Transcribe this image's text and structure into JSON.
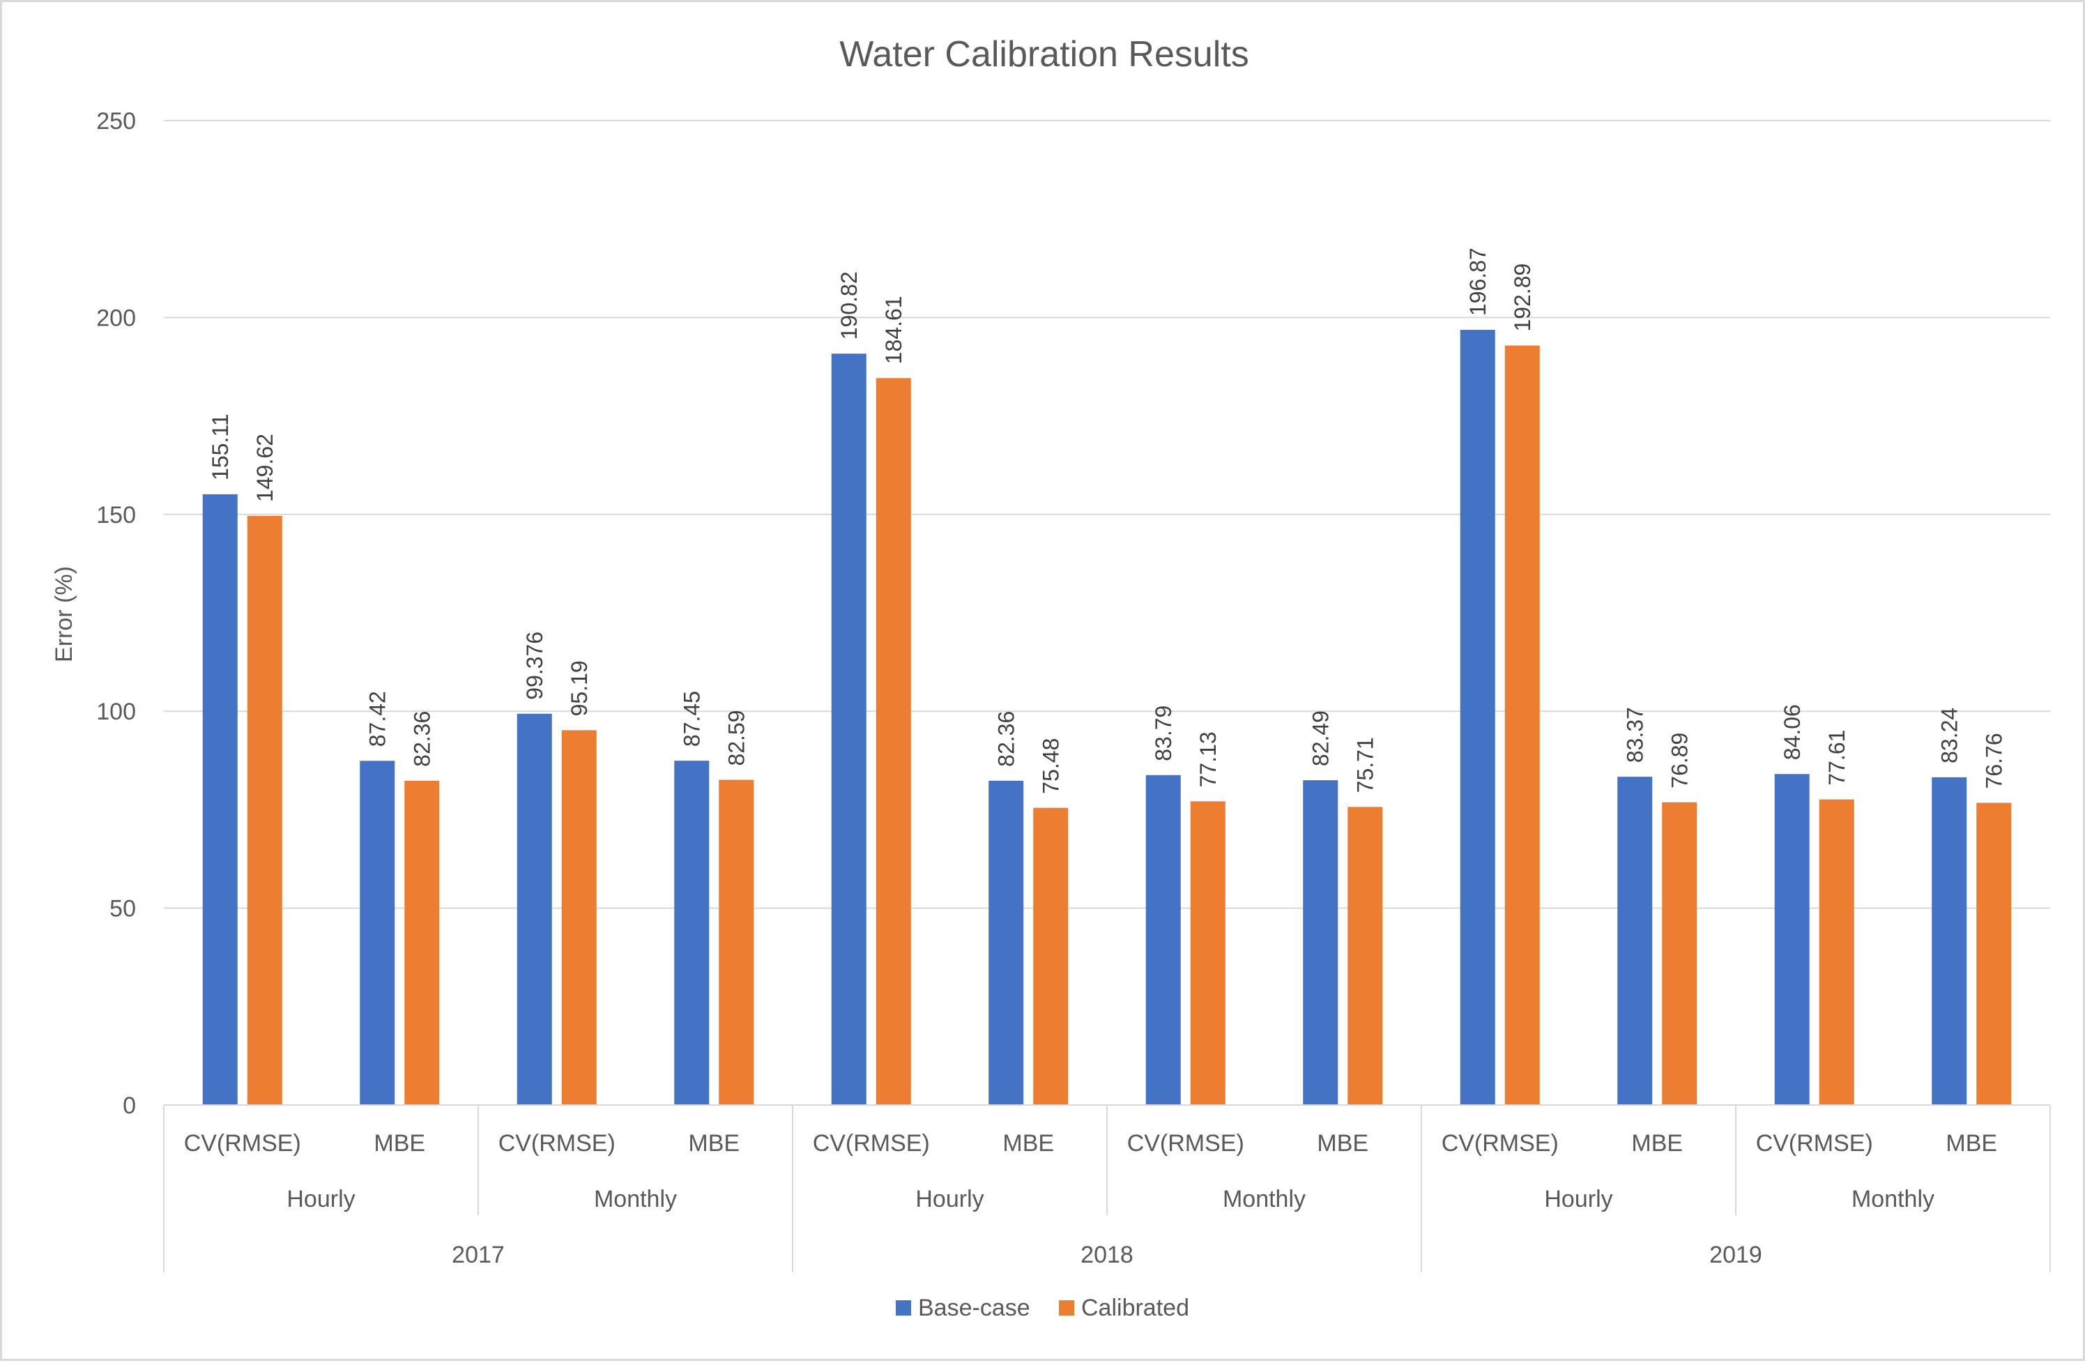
{
  "chart_data": {
    "type": "bar",
    "title": "Water Calibration Results",
    "xlabel": "",
    "ylabel": "Error (%)",
    "ylim": [
      0,
      250
    ],
    "yticks": [
      0,
      50,
      100,
      150,
      200,
      250
    ],
    "grid": true,
    "legend_position": "bottom",
    "categories": [
      [
        "2017",
        "Hourly",
        "CV(RMSE)"
      ],
      [
        "2017",
        "Hourly",
        "MBE"
      ],
      [
        "2017",
        "Monthly",
        "CV(RMSE)"
      ],
      [
        "2017",
        "Monthly",
        "MBE"
      ],
      [
        "2018",
        "Hourly",
        "CV(RMSE)"
      ],
      [
        "2018",
        "Hourly",
        "MBE"
      ],
      [
        "2018",
        "Monthly",
        "CV(RMSE)"
      ],
      [
        "2018",
        "Monthly",
        "MBE"
      ],
      [
        "2019",
        "Hourly",
        "CV(RMSE)"
      ],
      [
        "2019",
        "Hourly",
        "MBE"
      ],
      [
        "2019",
        "Monthly",
        "CV(RMSE)"
      ],
      [
        "2019",
        "Monthly",
        "MBE"
      ]
    ],
    "category_levels": {
      "metrics": [
        "CV(RMSE)",
        "MBE",
        "CV(RMSE)",
        "MBE",
        "CV(RMSE)",
        "MBE",
        "CV(RMSE)",
        "MBE",
        "CV(RMSE)",
        "MBE",
        "CV(RMSE)",
        "MBE"
      ],
      "frequencies": [
        "Hourly",
        "Monthly",
        "Hourly",
        "Monthly",
        "Hourly",
        "Monthly"
      ],
      "years": [
        "2017",
        "2018",
        "2019"
      ]
    },
    "series": [
      {
        "name": "Base-case",
        "color": "#4472C4",
        "values": [
          155.11,
          87.42,
          99.376,
          87.45,
          190.82,
          82.36,
          83.79,
          82.49,
          196.87,
          83.37,
          84.06,
          83.24
        ],
        "labels": [
          "155.11",
          "87.42",
          "99.376",
          "87.45",
          "190.82",
          "82.36",
          "83.79",
          "82.49",
          "196.87",
          "83.37",
          "84.06",
          "83.24"
        ]
      },
      {
        "name": "Calibrated",
        "color": "#ED7D31",
        "values": [
          149.62,
          82.36,
          95.19,
          82.59,
          184.61,
          75.48,
          77.13,
          75.71,
          192.89,
          76.89,
          77.61,
          76.76
        ],
        "labels": [
          "149.62",
          "82.36",
          "95.19",
          "82.59",
          "184.61",
          "75.48",
          "77.13",
          "75.71",
          "192.89",
          "76.89",
          "77.61",
          "76.76"
        ]
      }
    ]
  }
}
